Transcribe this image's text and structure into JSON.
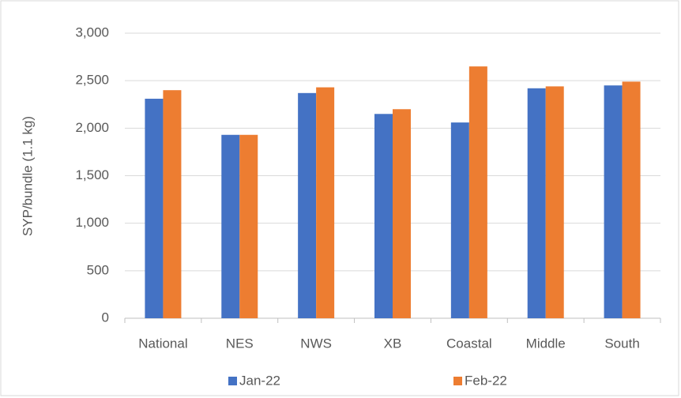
{
  "chart_data": {
    "type": "bar",
    "y_label": "SYP/bundle (1.1 kg)",
    "categories": [
      "National",
      "NES",
      "NWS",
      "XB",
      "Coastal",
      "Middle",
      "South"
    ],
    "series": [
      {
        "name": "Jan-22",
        "color": "#4472c4",
        "values": [
          2310,
          1930,
          2370,
          2150,
          2060,
          2420,
          2450
        ]
      },
      {
        "name": "Feb-22",
        "color": "#ed7d31",
        "values": [
          2400,
          1930,
          2430,
          2200,
          2650,
          2440,
          2490
        ]
      }
    ],
    "ylim": [
      0,
      3000
    ],
    "yticks": [
      0,
      500,
      {
        "value": 1000,
        "label": "1,000"
      },
      {
        "value": 1500,
        "label": "1,500"
      },
      {
        "value": 2000,
        "label": "2,000"
      },
      {
        "value": 2500,
        "label": "2,500"
      },
      {
        "value": 3000,
        "label": "3,000"
      }
    ],
    "grid": true,
    "legend": "bottom"
  }
}
